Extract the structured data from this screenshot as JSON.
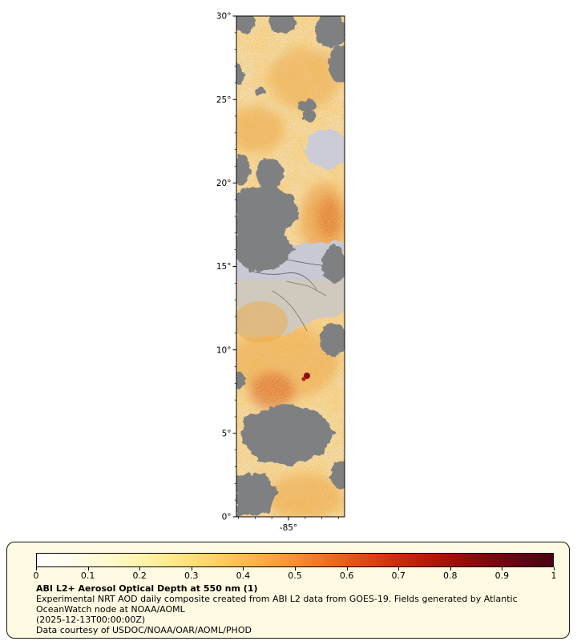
{
  "axes": {
    "y_tick_labels": [
      "30°",
      "25°",
      "20°",
      "15°",
      "10°",
      "5°",
      "0°"
    ],
    "x_tick_labels": [
      "-85°"
    ]
  },
  "colorbar": {
    "title": "ABI L2+ Aerosol Optical Depth at 550 nm (1)",
    "description": "Experimental NRT AOD daily composite created from ABI L2 data from GOES-19. Fields generated by Atlantic OceanWatch node at NOAA/AOML",
    "timestamp": "(2025-12-13T00:00:00Z)",
    "credit": "Data courtesy of USDOC/NOAA/OAR/AOML/PHOD",
    "tick_labels": [
      "0",
      "0.1",
      "0.2",
      "0.3",
      "0.4",
      "0.5",
      "0.6",
      "0.7",
      "0.8",
      "0.9",
      "1"
    ],
    "stops": [
      "#ffffff 0%",
      "#fffef2 5%",
      "#fffce0 10%",
      "#fff8c8 15%",
      "#fff3ae 20%",
      "#ffec92 25%",
      "#ffdf78 30%",
      "#ffd060 35%",
      "#ffbc4c 40%",
      "#fda63c 45%",
      "#f98e2e 50%",
      "#f37422 55%",
      "#ea5a18 60%",
      "#dd4210 65%",
      "#cc2c0a 70%",
      "#b81c08 75%",
      "#a21108 80%",
      "#8c0a0c 85%",
      "#750511 90%",
      "#5f0213 95%",
      "#4a0010 100%"
    ]
  },
  "map_colors": {
    "no_data_cloud_gray": "#7f8082",
    "no_retrieval_land_gray": "#c7cad3",
    "low_aod_cream": "#f2e2b4",
    "high_aod_red": "#c03014",
    "legend_background": "#fffbe3"
  },
  "chart_data": {
    "type": "heatmap",
    "title": "ABI L2+ Aerosol Optical Depth at 550 nm (1)",
    "value_range": [
      0,
      1
    ],
    "colorbar_ticks": [
      0,
      0.1,
      0.2,
      0.3,
      0.4,
      0.5,
      0.6,
      0.7,
      0.8,
      0.9,
      1
    ],
    "lat_ticks_deg": [
      30,
      25,
      20,
      15,
      10,
      5,
      0
    ],
    "lon_ticks_deg": [
      -85
    ],
    "legend_position": "bottom"
  }
}
